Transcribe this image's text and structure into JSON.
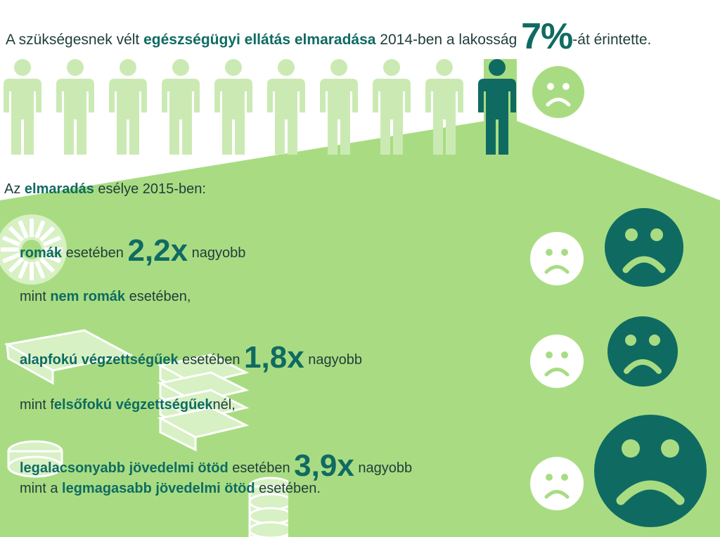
{
  "title": {
    "pre": "A szükségesnek vélt ",
    "bold": "egészségügyi ellátás elmaradása",
    "mid": " 2014-ben a lakosság ",
    "percent": "7%",
    "post": "-át érintette."
  },
  "subtitle": {
    "pre": "Az ",
    "bold": "elmaradás",
    "post": " esélye 2015-ben:"
  },
  "items": [
    {
      "group": "romák",
      "middle": " esetében ",
      "value": "2,2x",
      "post": " nagyobb",
      "cmp_pre": "mint ",
      "cmp_bold": "nem romák",
      "cmp_post": " esetében,"
    },
    {
      "group": "alapfokú végzettségűek",
      "middle": " esetében ",
      "value": "1,8x",
      "post": " nagyobb",
      "cmp_pre": "mint f",
      "cmp_bold": "elsőfokú végzettségűek",
      "cmp_post": "nél,"
    },
    {
      "group": "legalacsonyabb jövedelmi ötöd",
      "middle": " esetében ",
      "value": "3,9x",
      "post": " nagyobb",
      "cmp_pre": "mint a ",
      "cmp_bold": "legmagasabb jövedelmi ötöd",
      "cmp_post": " esetében."
    }
  ],
  "people": {
    "total": 10,
    "highlighted": 1
  },
  "icons": [
    "person-icon",
    "sad-face-icon",
    "roma-wheel-icon",
    "books-icon",
    "coins-icon"
  ],
  "colors": {
    "dark_teal": "#0f6b62",
    "light_green": "#a9dc82",
    "pale_green": "#cbeab3",
    "text": "#1f3d3a"
  }
}
